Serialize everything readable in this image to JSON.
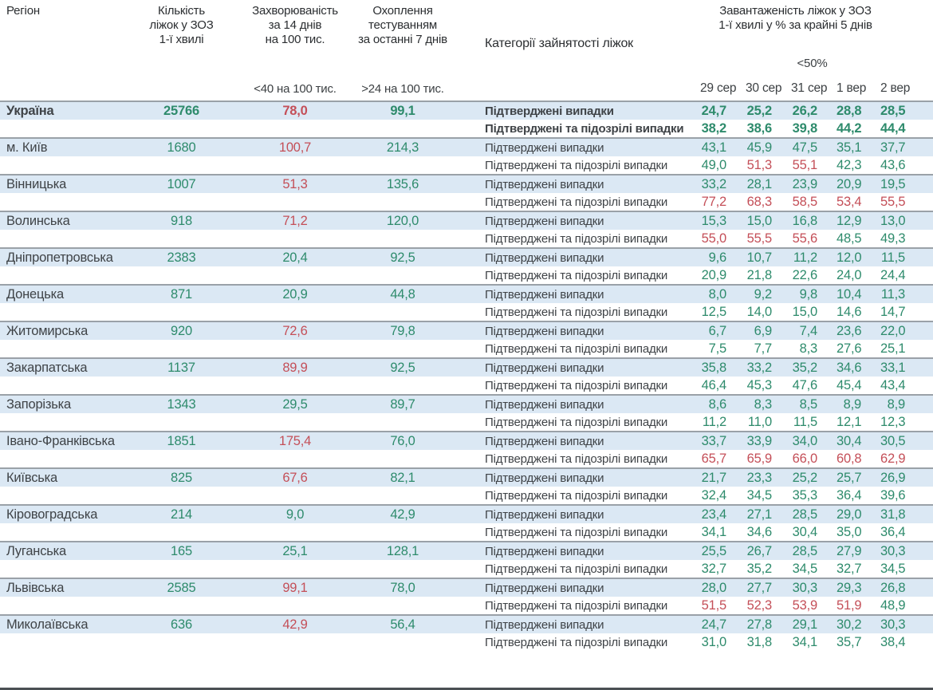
{
  "header": {
    "col_region": "Регіон",
    "col_beds": [
      "Кількість",
      "ліжок у ЗОЗ",
      "1-ї хвилі"
    ],
    "col_incidence": [
      "Захворюваність",
      "за 14 днів",
      "на 100 тис."
    ],
    "col_testing": [
      "Охоплення",
      "тестуванням",
      "за останні 7 днів"
    ],
    "col_category": "Категорії зайнятості ліжок",
    "col_load": [
      "Завантаженість ліжок у ЗОЗ",
      "1-ї хвилі у % за крайні 5 днів"
    ],
    "threshold_incidence": "<40 на 100 тис.",
    "threshold_testing": ">24 на 100 тис.",
    "threshold_load": "<50%",
    "dates": [
      "29 сер",
      "30 сер",
      "31 сер",
      "1 вер",
      "2 вер"
    ]
  },
  "labels": {
    "confirmed": "Підтверджені випадки",
    "confirmed_suspected": "Підтверджені та підозрілі випадки"
  },
  "colors": {
    "green": "#2e8b6c",
    "red": "#c44f58",
    "row_highlight": "#dbe8f4",
    "text_dark": "#3f4347",
    "separator": "#9aa1a8"
  },
  "rows": [
    {
      "region": "Україна",
      "bold": true,
      "beds": "25766",
      "beds_c": "g",
      "incidence": "78,0",
      "incidence_c": "r",
      "testing": "99,1",
      "testing_c": "g",
      "confirmed": [
        "24,7",
        "25,2",
        "26,2",
        "28,8",
        "28,5"
      ],
      "confirmed_c": "ggggg",
      "suspected": [
        "38,2",
        "38,6",
        "39,8",
        "44,2",
        "44,4"
      ],
      "suspected_c": "ggggg"
    },
    {
      "region": "м. Київ",
      "bold": false,
      "beds": "1680",
      "beds_c": "g",
      "incidence": "100,7",
      "incidence_c": "r",
      "testing": "214,3",
      "testing_c": "g",
      "confirmed": [
        "43,1",
        "45,9",
        "47,5",
        "35,1",
        "37,7"
      ],
      "confirmed_c": "ggggg",
      "suspected": [
        "49,0",
        "51,3",
        "55,1",
        "42,3",
        "43,6"
      ],
      "suspected_c": "grrgg"
    },
    {
      "region": "Вінницька",
      "bold": false,
      "beds": "1007",
      "beds_c": "g",
      "incidence": "51,3",
      "incidence_c": "r",
      "testing": "135,6",
      "testing_c": "g",
      "confirmed": [
        "33,2",
        "28,1",
        "23,9",
        "20,9",
        "19,5"
      ],
      "confirmed_c": "ggggg",
      "suspected": [
        "77,2",
        "68,3",
        "58,5",
        "53,4",
        "55,5"
      ],
      "suspected_c": "rrrrr"
    },
    {
      "region": "Волинська",
      "bold": false,
      "beds": "918",
      "beds_c": "g",
      "incidence": "71,2",
      "incidence_c": "r",
      "testing": "120,0",
      "testing_c": "g",
      "confirmed": [
        "15,3",
        "15,0",
        "16,8",
        "12,9",
        "13,0"
      ],
      "confirmed_c": "ggggg",
      "suspected": [
        "55,0",
        "55,5",
        "55,6",
        "48,5",
        "49,3"
      ],
      "suspected_c": "rrrgg"
    },
    {
      "region": "Дніпропетровська",
      "bold": false,
      "beds": "2383",
      "beds_c": "g",
      "incidence": "20,4",
      "incidence_c": "g",
      "testing": "92,5",
      "testing_c": "g",
      "confirmed": [
        "9,6",
        "10,7",
        "11,2",
        "12,0",
        "11,5"
      ],
      "confirmed_c": "ggggg",
      "suspected": [
        "20,9",
        "21,8",
        "22,6",
        "24,0",
        "24,4"
      ],
      "suspected_c": "ggggg"
    },
    {
      "region": "Донецька",
      "bold": false,
      "beds": "871",
      "beds_c": "g",
      "incidence": "20,9",
      "incidence_c": "g",
      "testing": "44,8",
      "testing_c": "g",
      "confirmed": [
        "8,0",
        "9,2",
        "9,8",
        "10,4",
        "11,3"
      ],
      "confirmed_c": "ggggg",
      "suspected": [
        "12,5",
        "14,0",
        "15,0",
        "14,6",
        "14,7"
      ],
      "suspected_c": "ggggg"
    },
    {
      "region": "Житомирська",
      "bold": false,
      "beds": "920",
      "beds_c": "g",
      "incidence": "72,6",
      "incidence_c": "r",
      "testing": "79,8",
      "testing_c": "g",
      "confirmed": [
        "6,7",
        "6,9",
        "7,4",
        "23,6",
        "22,0"
      ],
      "confirmed_c": "ggggg",
      "suspected": [
        "7,5",
        "7,7",
        "8,3",
        "27,6",
        "25,1"
      ],
      "suspected_c": "ggggg"
    },
    {
      "region": "Закарпатська",
      "bold": false,
      "beds": "1137",
      "beds_c": "g",
      "incidence": "89,9",
      "incidence_c": "r",
      "testing": "92,5",
      "testing_c": "g",
      "confirmed": [
        "35,8",
        "33,2",
        "35,2",
        "34,6",
        "33,1"
      ],
      "confirmed_c": "ggggg",
      "suspected": [
        "46,4",
        "45,3",
        "47,6",
        "45,4",
        "43,4"
      ],
      "suspected_c": "ggggg"
    },
    {
      "region": "Запорізька",
      "bold": false,
      "beds": "1343",
      "beds_c": "g",
      "incidence": "29,5",
      "incidence_c": "g",
      "testing": "89,7",
      "testing_c": "g",
      "confirmed": [
        "8,6",
        "8,3",
        "8,5",
        "8,9",
        "8,9"
      ],
      "confirmed_c": "ggggg",
      "suspected": [
        "11,2",
        "11,0",
        "11,5",
        "12,1",
        "12,3"
      ],
      "suspected_c": "ggggg"
    },
    {
      "region": "Івано-Франківська",
      "bold": false,
      "beds": "1851",
      "beds_c": "g",
      "incidence": "175,4",
      "incidence_c": "r",
      "testing": "76,0",
      "testing_c": "g",
      "confirmed": [
        "33,7",
        "33,9",
        "34,0",
        "30,4",
        "30,5"
      ],
      "confirmed_c": "ggggg",
      "suspected": [
        "65,7",
        "65,9",
        "66,0",
        "60,8",
        "62,9"
      ],
      "suspected_c": "rrrrr"
    },
    {
      "region": "Київська",
      "bold": false,
      "beds": "825",
      "beds_c": "g",
      "incidence": "67,6",
      "incidence_c": "r",
      "testing": "82,1",
      "testing_c": "g",
      "confirmed": [
        "21,7",
        "23,3",
        "25,2",
        "25,7",
        "26,9"
      ],
      "confirmed_c": "ggggg",
      "suspected": [
        "32,4",
        "34,5",
        "35,3",
        "36,4",
        "39,6"
      ],
      "suspected_c": "ggggg"
    },
    {
      "region": "Кіровоградська",
      "bold": false,
      "beds": "214",
      "beds_c": "g",
      "incidence": "9,0",
      "incidence_c": "g",
      "testing": "42,9",
      "testing_c": "g",
      "confirmed": [
        "23,4",
        "27,1",
        "28,5",
        "29,0",
        "31,8"
      ],
      "confirmed_c": "ggggg",
      "suspected": [
        "34,1",
        "34,6",
        "30,4",
        "35,0",
        "36,4"
      ],
      "suspected_c": "ggggg"
    },
    {
      "region": "Луганська",
      "bold": false,
      "beds": "165",
      "beds_c": "g",
      "incidence": "25,1",
      "incidence_c": "g",
      "testing": "128,1",
      "testing_c": "g",
      "confirmed": [
        "25,5",
        "26,7",
        "28,5",
        "27,9",
        "30,3"
      ],
      "confirmed_c": "ggggg",
      "suspected": [
        "32,7",
        "35,2",
        "34,5",
        "32,7",
        "34,5"
      ],
      "suspected_c": "ggggg"
    },
    {
      "region": "Львівська",
      "bold": false,
      "beds": "2585",
      "beds_c": "g",
      "incidence": "99,1",
      "incidence_c": "r",
      "testing": "78,0",
      "testing_c": "g",
      "confirmed": [
        "28,0",
        "27,7",
        "30,3",
        "29,3",
        "26,8"
      ],
      "confirmed_c": "ggggg",
      "suspected": [
        "51,5",
        "52,3",
        "53,9",
        "51,9",
        "48,9"
      ],
      "suspected_c": "rrrrg"
    },
    {
      "region": "Миколаївська",
      "bold": false,
      "beds": "636",
      "beds_c": "g",
      "incidence": "42,9",
      "incidence_c": "r",
      "testing": "56,4",
      "testing_c": "g",
      "confirmed": [
        "24,7",
        "27,8",
        "29,1",
        "30,2",
        "30,3"
      ],
      "confirmed_c": "ggggg",
      "suspected": [
        "31,0",
        "31,8",
        "34,1",
        "35,7",
        "38,4"
      ],
      "suspected_c": "ggggg"
    }
  ]
}
